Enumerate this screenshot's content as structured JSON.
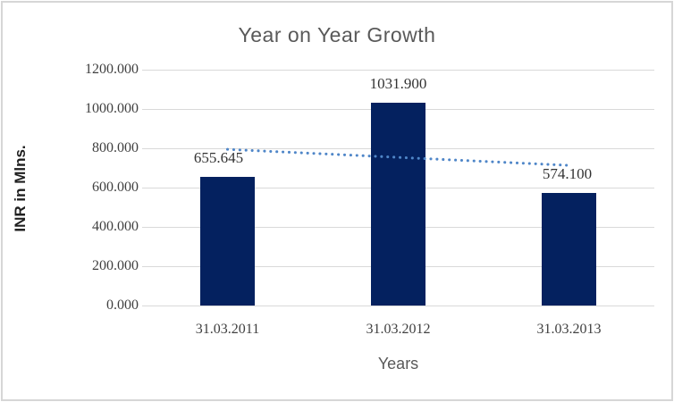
{
  "chart_data": {
    "type": "bar",
    "title": "Year on Year Growth",
    "xlabel": "Years",
    "ylabel": "INR in Mlns.",
    "categories": [
      "31.03.2011",
      "31.03.2012",
      "31.03.2013"
    ],
    "values": [
      655.645,
      1031.9,
      574.1
    ],
    "data_labels": [
      "655.645",
      "1031.900",
      "574.100"
    ],
    "ylim": [
      0,
      1200
    ],
    "ytick_values": [
      0,
      200,
      400,
      600,
      800,
      1000,
      1200
    ],
    "ytick_labels": [
      "0.000",
      "200.000",
      "400.000",
      "600.000",
      "800.000",
      "1000.000",
      "1200.000"
    ],
    "grid": true,
    "legend": "none",
    "bar_color": "#04215f",
    "grid_color": "#d9d9d9",
    "title_color": "#595959",
    "tick_color": "#404040",
    "trendline": {
      "type": "linear",
      "style": "dotted",
      "color": "#4f86c8",
      "start_value": 794.66,
      "end_value": 713.12
    },
    "label_dx": [
      -10,
      0,
      -2
    ]
  }
}
